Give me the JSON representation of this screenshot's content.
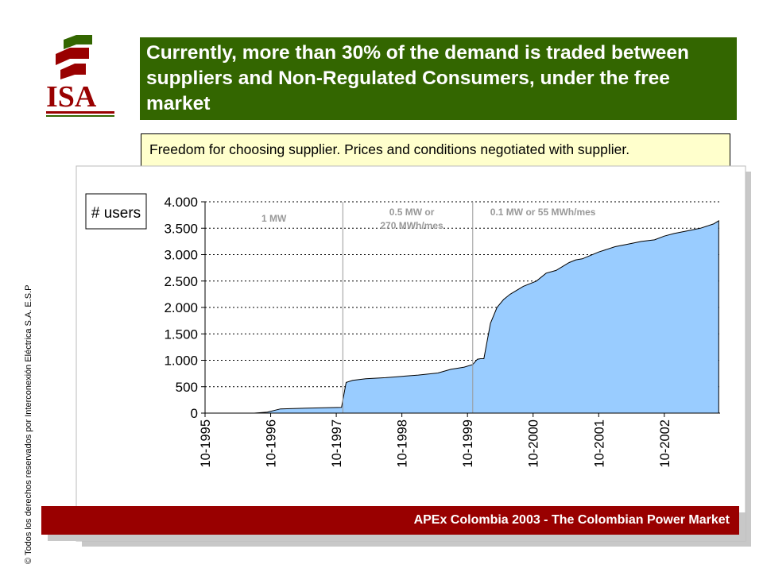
{
  "logo": {
    "text": "ISA",
    "color": "#990000",
    "accent_color": "#336600"
  },
  "title": "Currently, more than 30% of the demand is traded between suppliers and Non-Regulated Consumers, under the free market",
  "note": "Freedom for choosing supplier. Prices and conditions negotiated with supplier.",
  "copyright": "© Todos los derechos reservados por Interconexión Eléctrica S.A. E.S.P",
  "footer": "APEx Colombia 2003 - The Colombian Power Market",
  "colors": {
    "title_bg": "#336600",
    "footer_bg": "#990000",
    "area_fill": "#99ccff",
    "note_bg": "#ffffcc"
  },
  "chart_data": {
    "type": "area",
    "ylabel": "# users",
    "ylim": [
      0,
      4000
    ],
    "yticks": [
      0,
      500,
      1000,
      1500,
      2000,
      2500,
      3000,
      3500,
      4000
    ],
    "ytick_labels": [
      "0",
      "500",
      "1.000",
      "1.500",
      "2.000",
      "2.500",
      "3.000",
      "3.500",
      "4.000"
    ],
    "xlim": [
      1995.75,
      2003.6
    ],
    "xticks": [
      1995.75,
      1996.75,
      1997.75,
      1998.75,
      1999.75,
      2000.75,
      2001.75,
      2002.75
    ],
    "xtick_labels": [
      "10-1995",
      "10-1996",
      "10-1997",
      "10-1998",
      "10-1999",
      "10-2000",
      "10-2001",
      "10-2002"
    ],
    "grid": "horizontal dotted",
    "annotations": [
      {
        "text": "1 MW",
        "x": 1996.8
      },
      {
        "text": "0.5 MW or 270 MWh/mes",
        "x": 1998.9
      },
      {
        "text": "0.1 MW or 55 MWh/mes",
        "x": 2000.9
      }
    ],
    "threshold_lines_x": [
      1997.85,
      1999.83
    ],
    "x": [
      1995.75,
      1996.5,
      1996.7,
      1996.9,
      1997.2,
      1997.5,
      1997.83,
      1997.9,
      1998.0,
      1998.2,
      1998.5,
      1998.8,
      1999.0,
      1999.3,
      1999.5,
      1999.6,
      1999.7,
      1999.83,
      1999.9,
      1999.95,
      2000.0,
      2000.1,
      2000.2,
      2000.3,
      2000.4,
      2000.6,
      2000.8,
      2000.95,
      2001.1,
      2001.3,
      2001.4,
      2001.5,
      2001.75,
      2002.0,
      2002.2,
      2002.4,
      2002.6,
      2002.75,
      2002.9,
      2003.1,
      2003.3,
      2003.5,
      2003.58
    ],
    "y": [
      0,
      0,
      20,
      80,
      90,
      100,
      110,
      580,
      620,
      650,
      670,
      700,
      720,
      760,
      830,
      850,
      870,
      920,
      1020,
      1030,
      1030,
      1700,
      2000,
      2150,
      2250,
      2400,
      2500,
      2650,
      2700,
      2850,
      2900,
      2920,
      3050,
      3150,
      3200,
      3250,
      3280,
      3350,
      3400,
      3450,
      3500,
      3580,
      3640
    ]
  }
}
